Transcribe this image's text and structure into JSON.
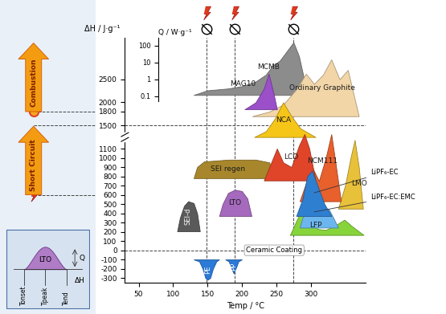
{
  "chart_data": {
    "type": "area",
    "x_label": "Temp / °C",
    "y_label": "ΔH / J·g⁻¹",
    "xlim": [
      30,
      380
    ],
    "xticks": [
      50,
      100,
      150,
      200,
      250,
      300
    ],
    "ylim": [
      -350,
      3400
    ],
    "yticks": [
      -300,
      -200,
      -100,
      0,
      100,
      200,
      300,
      400,
      500,
      600,
      700,
      800,
      900,
      1000,
      1100,
      1500,
      1800,
      2000,
      2500
    ],
    "q_axis": {
      "label": "Q / W·g⁻¹",
      "log": true,
      "ylim": [
        0.05,
        300
      ],
      "yticks": [
        0.1,
        1,
        10,
        100
      ]
    },
    "hazard_temps": [
      149,
      189,
      275
    ],
    "hazard_levels": [
      {
        "label": "Combustion",
        "value": 1800
      },
      {
        "label": "Short Circuit",
        "value": 600
      }
    ],
    "reference_lines": [
      {
        "value": 1500
      },
      {
        "value": 0,
        "label": "Ceramic Coating"
      }
    ],
    "schematic": {
      "name": "LTO",
      "height_label": "Q",
      "area_label": "ΔH",
      "temperature_labels": [
        "Tonset",
        "Tpeak",
        "Tend"
      ]
    },
    "series": [
      {
        "name": "MAG10",
        "color": "#8c8c8c",
        "baseline": 2160,
        "x": [
          130,
          150,
          180,
          200,
          220,
          235,
          245,
          255,
          265,
          275,
          283,
          289,
          295
        ],
        "values": [
          2160,
          2260,
          2300,
          2350,
          2450,
          2600,
          2800,
          2900,
          3100,
          3300,
          3000,
          2600,
          2160
        ]
      },
      {
        "name": "Ordinary Graphite",
        "color": "#f2d6a8",
        "baseline": 1700,
        "x": [
          215,
          240,
          260,
          280,
          293,
          305,
          318,
          330,
          342,
          354,
          362,
          370
        ],
        "values": [
          1700,
          1800,
          1950,
          2300,
          2620,
          2400,
          2600,
          2930,
          2500,
          2700,
          2200,
          1700
        ]
      },
      {
        "name": "MCMB",
        "color": "#9b4fc9",
        "baseline": 1850,
        "x": [
          204,
          220,
          232,
          239,
          246,
          251
        ],
        "values": [
          1850,
          2000,
          2300,
          2620,
          2200,
          1850
        ]
      },
      {
        "name": "NCA",
        "color": "#f5c518",
        "baseline": 1300,
        "x": [
          218,
          235,
          248,
          260,
          272,
          285,
          307
        ],
        "values": [
          1300,
          1400,
          1650,
          2000,
          1700,
          1450,
          1300
        ]
      },
      {
        "name": "SEI regen",
        "color": "#a8872c",
        "baseline": 780,
        "x": [
          130,
          135,
          145,
          180,
          220,
          240,
          246
        ],
        "values": [
          780,
          900,
          960,
          980,
          980,
          950,
          780
        ]
      },
      {
        "name": "LMO",
        "color": "#e8c13a",
        "baseline": 450,
        "x": [
          340,
          350,
          358,
          364,
          370,
          376
        ],
        "values": [
          450,
          700,
          1000,
          1250,
          900,
          450
        ]
      },
      {
        "name": "NCM111",
        "color": "#e8602c",
        "baseline": 530,
        "x": [
          284,
          292,
          302,
          312,
          322,
          330,
          337,
          344
        ],
        "values": [
          530,
          700,
          900,
          750,
          1000,
          1350,
          900,
          530
        ]
      },
      {
        "name": "LCO",
        "color": "#e0452a",
        "baseline": 755,
        "x": [
          232,
          240,
          251,
          260,
          272,
          283,
          291,
          298,
          307
        ],
        "values": [
          755,
          900,
          1100,
          950,
          900,
          1150,
          1350,
          1100,
          755
        ]
      },
      {
        "name": "LFP",
        "color": "#86d43a",
        "baseline": 165,
        "x": [
          270,
          280,
          288,
          296,
          310,
          322,
          336,
          349,
          360,
          377
        ],
        "values": [
          165,
          330,
          450,
          380,
          230,
          220,
          270,
          330,
          260,
          165
        ]
      },
      {
        "name": "LiPF₆-EC:EMC",
        "color": "#6bb6ee",
        "baseline": 245,
        "x": [
          284,
          292,
          302,
          312,
          320,
          326,
          333,
          340
        ],
        "values": [
          245,
          450,
          575,
          420,
          400,
          450,
          350,
          245
        ]
      },
      {
        "name": "LiPF₆-EC",
        "color": "#2f7fd1",
        "baseline": 370,
        "x": [
          279,
          288,
          295,
          302,
          310,
          320,
          330
        ],
        "values": [
          370,
          550,
          800,
          860,
          700,
          500,
          370
        ]
      },
      {
        "name": "LTO",
        "color": "#a569bd",
        "baseline": 370,
        "x": [
          167,
          172,
          180,
          190,
          200,
          208,
          214
        ],
        "values": [
          370,
          500,
          620,
          655,
          640,
          560,
          370
        ]
      },
      {
        "name": "SEI-d",
        "color": "#5a5a5a",
        "baseline": 205,
        "x": [
          106,
          110,
          116,
          122,
          130,
          135,
          139
        ],
        "values": [
          205,
          350,
          480,
          530,
          510,
          400,
          205
        ]
      },
      {
        "name": "PE",
        "color": "#2a7ad8",
        "baseline": -100,
        "x": [
          130,
          138,
          143,
          147,
          150,
          154,
          158,
          163,
          167
        ],
        "values": [
          -100,
          -120,
          -200,
          -300,
          -320,
          -300,
          -200,
          -120,
          -100
        ]
      },
      {
        "name": "PP",
        "color": "#2a7ad8",
        "baseline": -100,
        "x": [
          176,
          181,
          184,
          188,
          192,
          195,
          200
        ],
        "values": [
          -100,
          -120,
          -180,
          -250,
          -180,
          -120,
          -100
        ]
      }
    ]
  }
}
